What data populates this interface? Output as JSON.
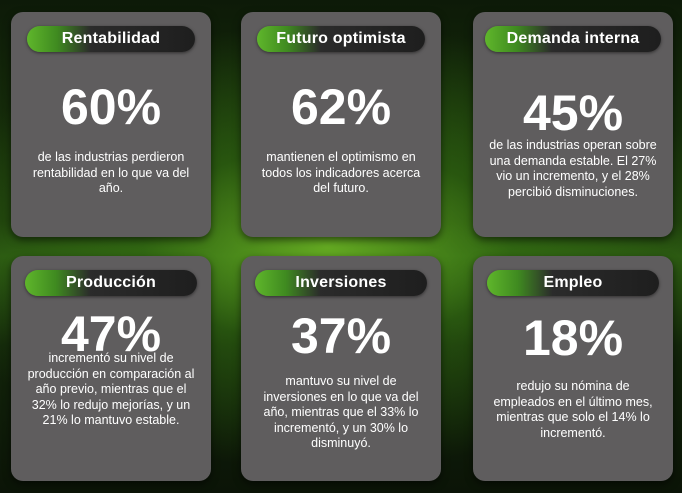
{
  "cards": [
    {
      "title": "Rentabilidad",
      "value": "60%",
      "description": "de las industrias perdieron rentabilidad en lo que va del año."
    },
    {
      "title": "Futuro optimista",
      "value": "62%",
      "description": "mantienen el optimismo en todos los indicadores acerca del futuro."
    },
    {
      "title": "Demanda interna",
      "value": "45%",
      "description": "de las industrias operan sobre una demanda estable. El 27% vio un incremento, y el 28% percibió disminuciones."
    },
    {
      "title": "Producción",
      "value": "47%",
      "description": "incrementó su nivel de producción en comparación al año previo, mientras que el 32% lo redujo mejorías, y un 21% lo mantuvo estable."
    },
    {
      "title": "Inversiones",
      "value": "37%",
      "description": "mantuvo su nivel de inversiones en lo que va del año, mientras que el 33% lo incrementó, y un 30% lo disminuyó."
    },
    {
      "title": "Empleo",
      "value": "18%",
      "description": "redujo su nómina de empleados en el último mes, mientras que solo el 14% lo incrementó."
    }
  ],
  "colors": {
    "card_background": "#5f5d5e",
    "pill_accent_green": "#5fb62b",
    "pill_dark": "#1e1e1e",
    "background_green": "#2a5512",
    "text": "#ffffff"
  }
}
